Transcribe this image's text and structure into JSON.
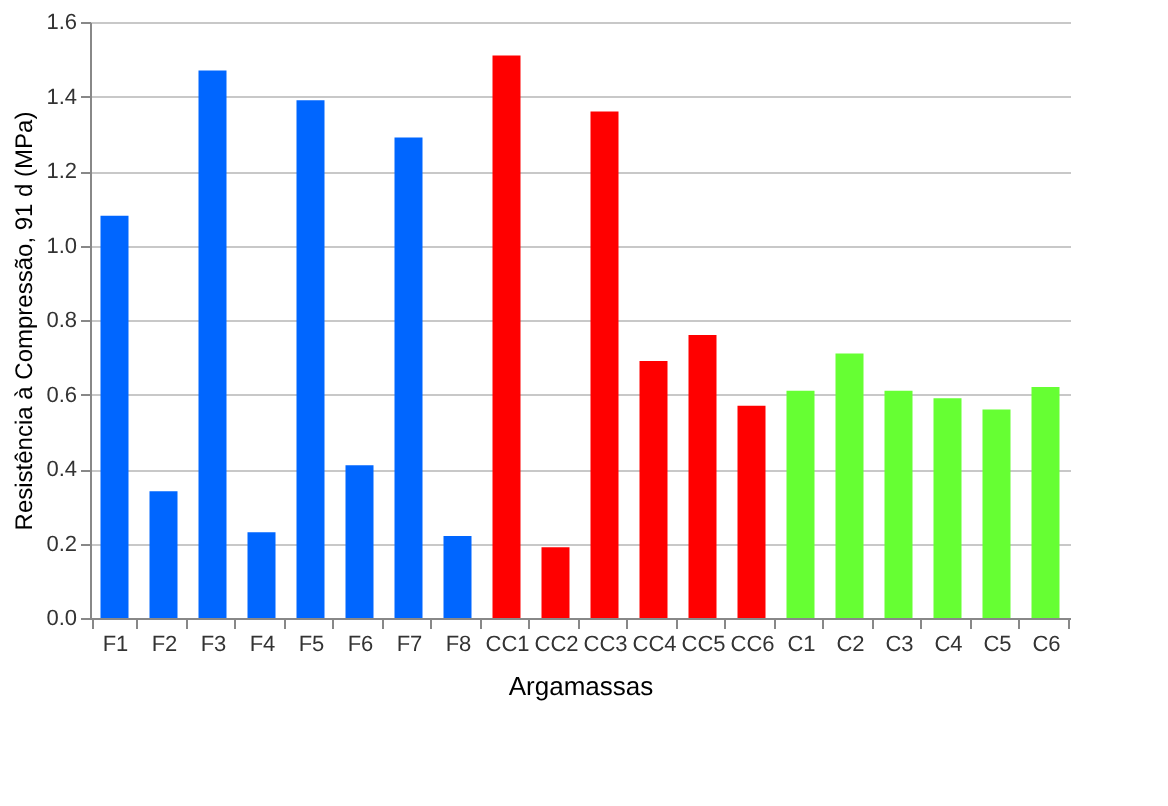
{
  "chart_data": {
    "type": "bar",
    "xlabel": "Argamassas",
    "ylabel": "Resistência à Compressão, 91 d (MPa)",
    "categories": [
      "F1",
      "F2",
      "F3",
      "F4",
      "F5",
      "F6",
      "F7",
      "F8",
      "CC1",
      "CC2",
      "CC3",
      "CC4",
      "CC5",
      "CC6",
      "C1",
      "C2",
      "C3",
      "C4",
      "C5",
      "C6"
    ],
    "values": [
      1.08,
      0.34,
      1.47,
      0.23,
      1.39,
      0.41,
      1.29,
      0.22,
      1.51,
      0.19,
      1.36,
      0.69,
      0.76,
      0.57,
      0.61,
      0.71,
      0.61,
      0.59,
      0.56,
      0.62
    ],
    "colors": [
      "#0066ff",
      "#0066ff",
      "#0066ff",
      "#0066ff",
      "#0066ff",
      "#0066ff",
      "#0066ff",
      "#0066ff",
      "#ff0000",
      "#ff0000",
      "#ff0000",
      "#ff0000",
      "#ff0000",
      "#ff0000",
      "#66ff33",
      "#66ff33",
      "#66ff33",
      "#66ff33",
      "#66ff33",
      "#66ff33"
    ],
    "ylim": [
      0,
      1.6
    ],
    "yticks": [
      {
        "value": 0,
        "label": "0.0"
      },
      {
        "value": 0.2,
        "label": "0.2"
      },
      {
        "value": 0.4,
        "label": "0.4"
      },
      {
        "value": 0.6,
        "label": "0.6"
      },
      {
        "value": 0.8,
        "label": "0.8"
      },
      {
        "value": 1.0,
        "label": "1.0"
      },
      {
        "value": 1.2,
        "label": "1.2"
      },
      {
        "value": 1.4,
        "label": "1.4"
      },
      {
        "value": 1.6,
        "label": "1.6"
      }
    ],
    "grid": "y"
  }
}
